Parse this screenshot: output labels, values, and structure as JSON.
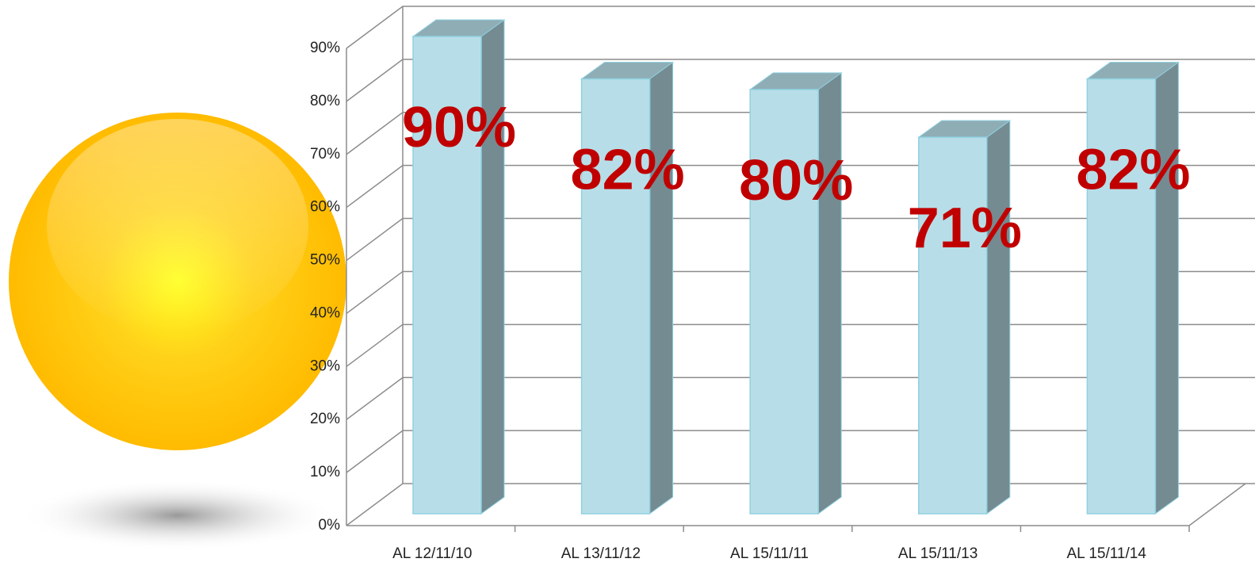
{
  "chart_data": {
    "type": "bar3d",
    "categories": [
      "AL 12/11/10",
      "AL 13/11/12",
      "AL 15/11/11",
      "AL 15/11/13",
      "AL 15/11/14"
    ],
    "values": [
      90,
      82,
      80,
      71,
      82
    ],
    "value_labels": [
      "90%",
      "82%",
      "80%",
      "71%",
      "82%"
    ],
    "color": "#b7dee8",
    "label_color": "#c00000",
    "ylim": [
      0,
      90
    ],
    "yticks": [
      {
        "value": 0,
        "label": "0%"
      },
      {
        "value": 10,
        "label": "10%"
      },
      {
        "value": 20,
        "label": "20%"
      },
      {
        "value": 30,
        "label": "30%"
      },
      {
        "value": 40,
        "label": "40%"
      },
      {
        "value": 50,
        "label": "50%"
      },
      {
        "value": 60,
        "label": "60%"
      },
      {
        "value": 70,
        "label": "70%"
      },
      {
        "value": 80,
        "label": "80%"
      },
      {
        "value": 90,
        "label": "90%"
      }
    ],
    "grid": true
  }
}
